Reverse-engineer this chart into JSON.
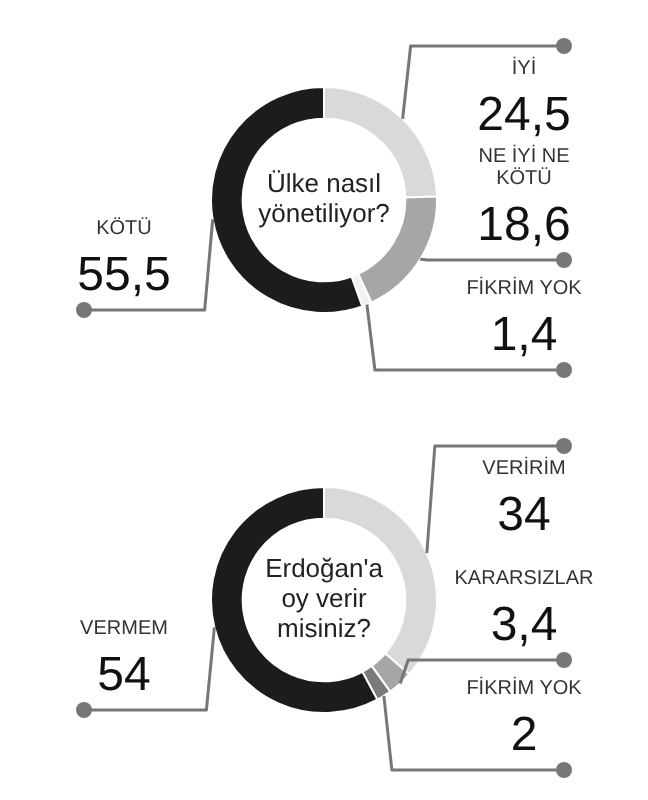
{
  "chart_data": [
    {
      "type": "donut",
      "title": "Ülke nasıl yönetiliyor?",
      "categories": [
        "İYİ",
        "NE İYİ NE KÖTÜ",
        "FİKRİM YOK",
        "KÖTÜ"
      ],
      "values": [
        24.5,
        18.6,
        1.4,
        55.5
      ],
      "value_labels": [
        "24,5",
        "18,6",
        "1,4",
        "55,5"
      ],
      "colors": [
        "#d9d9d9",
        "#a6a6a6",
        "#f2f2f2",
        "#1c1c1c"
      ]
    },
    {
      "type": "donut",
      "title": "Erdoğan'a oy verir misiniz?",
      "categories": [
        "VERİRİM",
        "KARARSIZLAR",
        "FİKRİM YOK",
        "VERMEM"
      ],
      "values": [
        34,
        3.4,
        2,
        54
      ],
      "value_labels": [
        "34",
        "3,4",
        "2",
        "54"
      ],
      "colors": [
        "#d9d9d9",
        "#a6a6a6",
        "#7a7a7a",
        "#1c1c1c"
      ]
    }
  ]
}
